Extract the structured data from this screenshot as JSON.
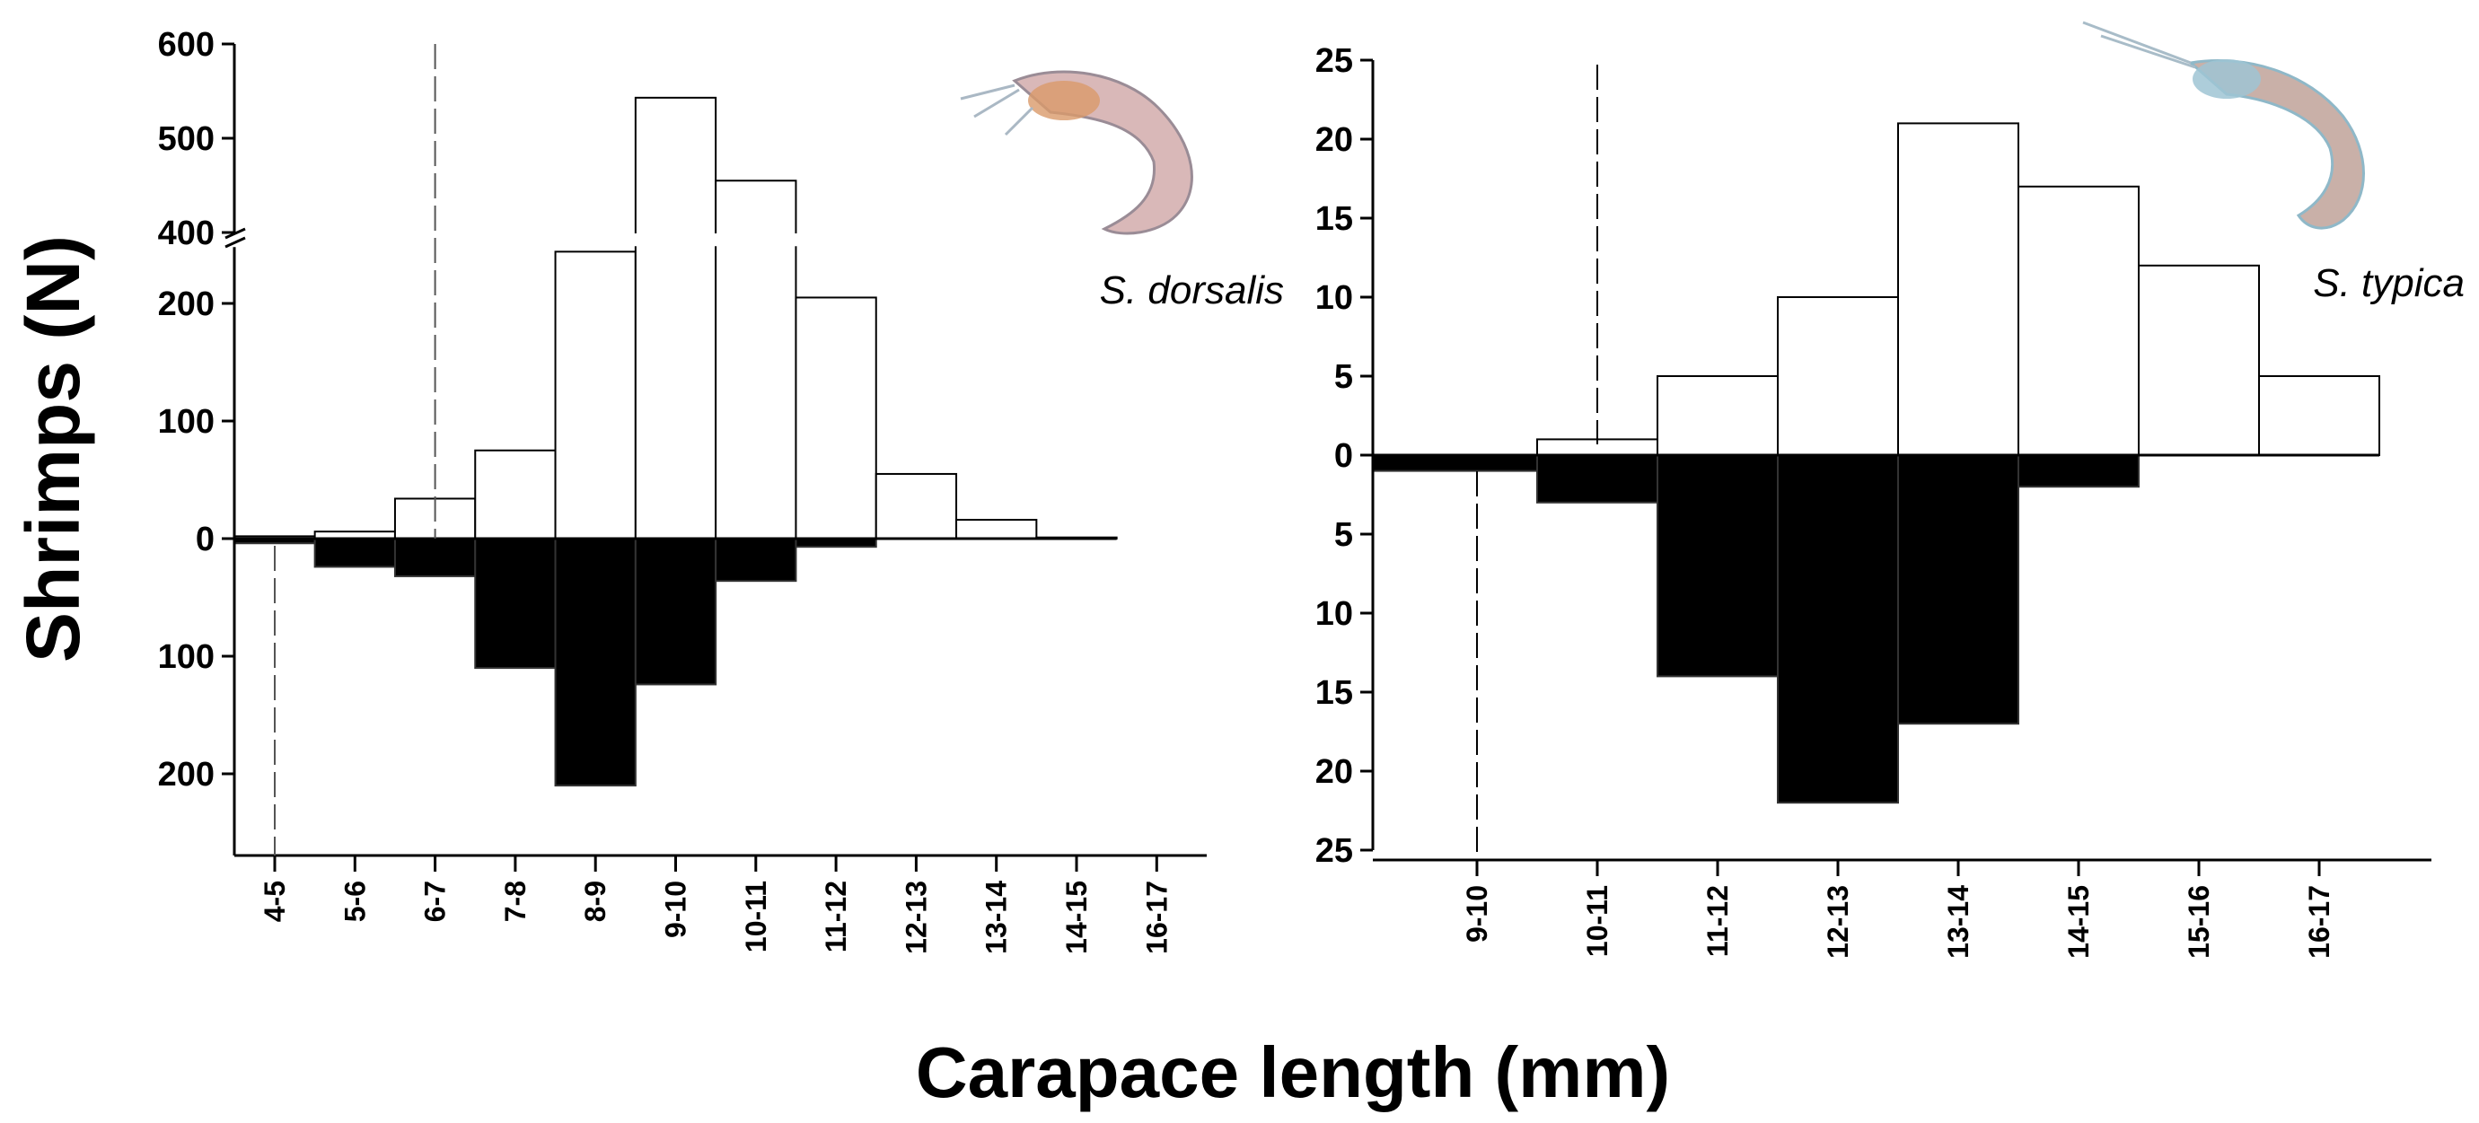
{
  "chart_data": [
    {
      "type": "bar",
      "title": "",
      "species_label": "S. dorsalis",
      "categories": [
        "4-5",
        "5-6",
        "6-7",
        "7-8",
        "8-9",
        "9-10",
        "10-11",
        "11-12",
        "12-13",
        "13-14",
        "14-15",
        "16-17"
      ],
      "series": [
        {
          "name": "upper (white bars)",
          "color": "#ffffff",
          "values": [
            2,
            6,
            34,
            75,
            244,
            543,
            455,
            205,
            55,
            16,
            1,
            0
          ]
        },
        {
          "name": "lower (black bars)",
          "color": "#000000",
          "values": [
            4,
            24,
            32,
            110,
            210,
            124,
            36,
            7,
            0,
            0,
            0,
            0
          ]
        }
      ],
      "y_ticks_upper": [
        "600",
        "500",
        "400",
        "200",
        "100",
        "0"
      ],
      "y_ticks_lower": [
        "100",
        "200"
      ],
      "axis_break": [
        254,
        400
      ],
      "ylim_upper": [
        0,
        600
      ],
      "ylim_lower": [
        0,
        250
      ],
      "dashed_lines": [
        {
          "category": "6-7",
          "side": "upper"
        },
        {
          "category": "4-5",
          "side": "lower"
        }
      ]
    },
    {
      "type": "bar",
      "title": "",
      "species_label": "S. typica",
      "categories": [
        "9-10",
        "10-11",
        "11-12",
        "12-13",
        "13-14",
        "14-15",
        "15-16",
        "16-17"
      ],
      "series": [
        {
          "name": "upper (white bars)",
          "color": "#ffffff",
          "values": [
            0,
            1,
            5,
            10,
            21,
            17,
            12,
            5
          ]
        },
        {
          "name": "lower (black bars)",
          "color": "#000000",
          "values": [
            1,
            3,
            14,
            22,
            17,
            2,
            0,
            0
          ]
        }
      ],
      "y_ticks_upper": [
        "25",
        "20",
        "15",
        "10",
        "5",
        "0"
      ],
      "y_ticks_lower": [
        "5",
        "10",
        "15",
        "20",
        "25"
      ],
      "ylim_upper": [
        0,
        25
      ],
      "ylim_lower": [
        0,
        25
      ],
      "dashed_lines": [
        {
          "category": "10-11",
          "side": "upper"
        },
        {
          "category": "9-10",
          "side": "lower"
        }
      ]
    }
  ],
  "ylabel": "Shrimps (N)",
  "xlabel": "Carapace length (mm)"
}
